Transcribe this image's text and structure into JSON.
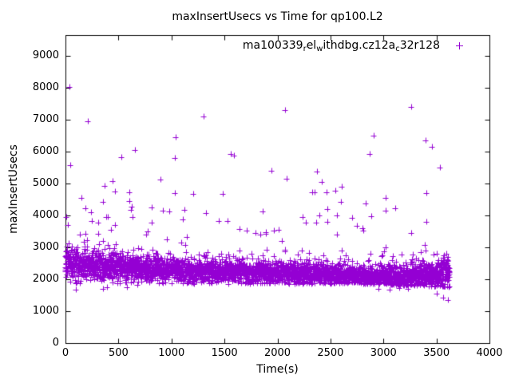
{
  "title": "maxInsertUsecs vs Time for qp100.L2",
  "x_axis": {
    "label": "Time(s)",
    "ticks": [
      "0",
      "500",
      "1000",
      "1500",
      "2000",
      "2500",
      "3000",
      "3500",
      "4000"
    ]
  },
  "y_axis": {
    "label": "maxInsertUsecs",
    "ticks": [
      "0",
      "1000",
      "2000",
      "3000",
      "4000",
      "5000",
      "6000",
      "7000",
      "8000",
      "9000"
    ]
  },
  "legend": {
    "series_name_raw": "ma100339_rel_withdbg.cz12a_c32r128",
    "display_segments": [
      {
        "text": "ma100339",
        "sub": false
      },
      {
        "text": "r",
        "sub": true
      },
      {
        "text": "el",
        "sub": false
      },
      {
        "text": "w",
        "sub": true
      },
      {
        "text": "ithdbg.cz12a",
        "sub": false
      },
      {
        "text": "c",
        "sub": true
      },
      {
        "text": "32r128",
        "sub": false
      }
    ],
    "marker_glyph": "+"
  },
  "chart_data": {
    "type": "scatter",
    "title": "maxInsertUsecs vs Time for qp100.L2",
    "xlabel": "Time(s)",
    "ylabel": "maxInsertUsecs",
    "xlim": [
      0,
      4000
    ],
    "ylim": [
      0,
      9650
    ],
    "x_ticks": [
      0,
      500,
      1000,
      1500,
      2000,
      2500,
      3000,
      3500,
      4000
    ],
    "y_ticks": [
      0,
      1000,
      2000,
      3000,
      4000,
      5000,
      6000,
      7000,
      8000,
      9000
    ],
    "grid": false,
    "legend_position": "top-right-inside",
    "marker": "plus",
    "marker_size_px": 7,
    "color": "#9400D3",
    "frame_color": "#000000",
    "series": [
      {
        "name": "ma100339_rel_withdbg.cz12a_c32r128",
        "description": "Per-second max insert latency samples 0-3625s; dense band ~1900-3100us drifting from ~2500 down to ~2100, widening near start and end; sparse spikes to 8000us",
        "t_range": [
          0,
          3625
        ],
        "samples_per_second": 1,
        "band_model": {
          "seed": 1337,
          "mean_pts": [
            [
              0,
              2530
            ],
            [
              120,
              2470
            ],
            [
              400,
              2400
            ],
            [
              700,
              2340
            ],
            [
              1200,
              2270
            ],
            [
              1800,
              2210
            ],
            [
              2400,
              2160
            ],
            [
              2900,
              2100
            ],
            [
              3250,
              2070
            ],
            [
              3450,
              2120
            ],
            [
              3625,
              2160
            ]
          ],
          "std_pts": [
            [
              0,
              270
            ],
            [
              300,
              235
            ],
            [
              700,
              205
            ],
            [
              1500,
              180
            ],
            [
              2500,
              170
            ],
            [
              3000,
              160
            ],
            [
              3300,
              200
            ],
            [
              3625,
              255
            ]
          ],
          "tail_p_pts": [
            [
              0,
              0.1
            ],
            [
              600,
              0.055
            ],
            [
              1200,
              0.04
            ],
            [
              2800,
              0.04
            ],
            [
              3300,
              0.07
            ],
            [
              3625,
              0.09
            ]
          ],
          "tail_scale": 330,
          "band_cap": 3480,
          "floor_pts": [
            [
              0,
              1860
            ],
            [
              2800,
              1855
            ],
            [
              3000,
              1810
            ],
            [
              3350,
              1780
            ],
            [
              3625,
              1740
            ]
          ],
          "floor_noise": 55
        },
        "outliers_high": [
          [
            35,
            8025
          ],
          [
            10,
            3950
          ],
          [
            25,
            3700
          ],
          [
            45,
            5575
          ],
          [
            151,
            4550
          ],
          [
            188,
            4225
          ],
          [
            211,
            6950
          ],
          [
            241,
            4100
          ],
          [
            249,
            3825
          ],
          [
            309,
            3775
          ],
          [
            354,
            4425
          ],
          [
            369,
            4925
          ],
          [
            384,
            3950
          ],
          [
            399,
            3950
          ],
          [
            429,
            3550
          ],
          [
            444,
            5075
          ],
          [
            467,
            4750
          ],
          [
            467,
            3700
          ],
          [
            527,
            5825
          ],
          [
            602,
            4725
          ],
          [
            602,
            4450
          ],
          [
            617,
            4175
          ],
          [
            625,
            4275
          ],
          [
            632,
            3950
          ],
          [
            655,
            6050
          ],
          [
            776,
            3500
          ],
          [
            813,
            4250
          ],
          [
            813,
            3775
          ],
          [
            896,
            5125
          ],
          [
            919,
            4150
          ],
          [
            979,
            4125
          ],
          [
            1032,
            5800
          ],
          [
            1032,
            4700
          ],
          [
            1039,
            6450
          ],
          [
            1107,
            3875
          ],
          [
            1122,
            4175
          ],
          [
            1205,
            4675
          ],
          [
            1300,
            7100
          ],
          [
            1326,
            4075
          ],
          [
            1446,
            3825
          ],
          [
            1484,
            4675
          ],
          [
            1529,
            3825
          ],
          [
            1560,
            5925
          ],
          [
            1590,
            5875
          ],
          [
            1642,
            3575
          ],
          [
            1710,
            3525
          ],
          [
            1861,
            4125
          ],
          [
            1944,
            5400
          ],
          [
            1966,
            3525
          ],
          [
            2011,
            3550
          ],
          [
            2071,
            7300
          ],
          [
            2086,
            5150
          ],
          [
            2237,
            3950
          ],
          [
            2267,
            3775
          ],
          [
            2328,
            4725
          ],
          [
            2350,
            4725
          ],
          [
            2365,
            3775
          ],
          [
            2373,
            5375
          ],
          [
            2395,
            4000
          ],
          [
            2415,
            5050
          ],
          [
            2463,
            4725
          ],
          [
            2471,
            4200
          ],
          [
            2471,
            3800
          ],
          [
            2546,
            4775
          ],
          [
            2561,
            4000
          ],
          [
            2598,
            4425
          ],
          [
            2606,
            4890
          ],
          [
            2705,
            3925
          ],
          [
            2750,
            3675
          ],
          [
            2803,
            3600
          ],
          [
            2810,
            3525
          ],
          [
            2833,
            4375
          ],
          [
            2870,
            5925
          ],
          [
            2885,
            3975
          ],
          [
            2907,
            6500
          ],
          [
            3021,
            4550
          ],
          [
            3021,
            4150
          ],
          [
            3111,
            4225
          ],
          [
            3261,
            7400
          ],
          [
            3397,
            6350
          ],
          [
            3404,
            4700
          ],
          [
            3404,
            3800
          ],
          [
            3457,
            6150
          ],
          [
            3530,
            5510
          ]
        ],
        "outliers_low": [
          [
            95,
            1675
          ],
          [
            355,
            1700
          ],
          [
            395,
            1750
          ],
          [
            580,
            1750
          ],
          [
            680,
            1825
          ],
          [
            2950,
            1700
          ],
          [
            3060,
            1675
          ],
          [
            3150,
            1725
          ],
          [
            3230,
            1700
          ],
          [
            3500,
            1550
          ],
          [
            3560,
            1430
          ],
          [
            3605,
            1340
          ]
        ]
      }
    ]
  }
}
